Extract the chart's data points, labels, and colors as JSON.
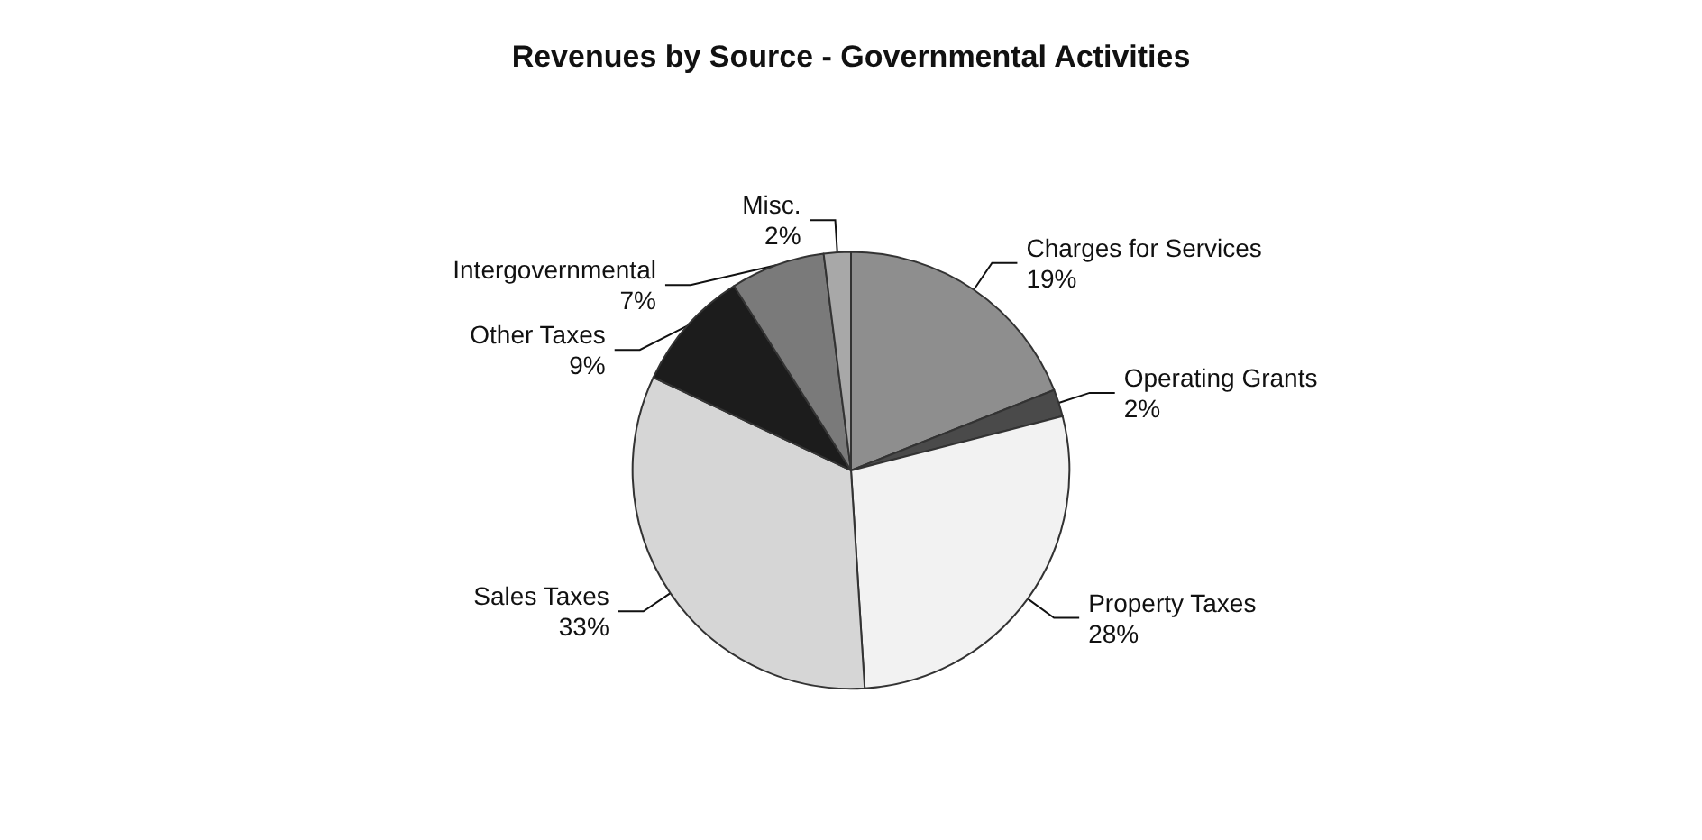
{
  "chart_data": {
    "type": "pie",
    "title": "Revenues by Source - Governmental Activities",
    "categories": [
      "Charges for Services",
      "Operating Grants",
      "Property Taxes",
      "Sales Taxes",
      "Other Taxes",
      "Intergovernmental",
      "Misc."
    ],
    "values": [
      19,
      2,
      28,
      33,
      9,
      7,
      2
    ],
    "colors": [
      "#8e8e8e",
      "#4a4a4a",
      "#f2f2f2",
      "#d6d6d6",
      "#1c1c1c",
      "#7a7a7a",
      "#a8a8a8"
    ],
    "value_labels": [
      "19%",
      "2%",
      "28%",
      "33%",
      "9%",
      "7%",
      "2%"
    ],
    "legend": false
  }
}
